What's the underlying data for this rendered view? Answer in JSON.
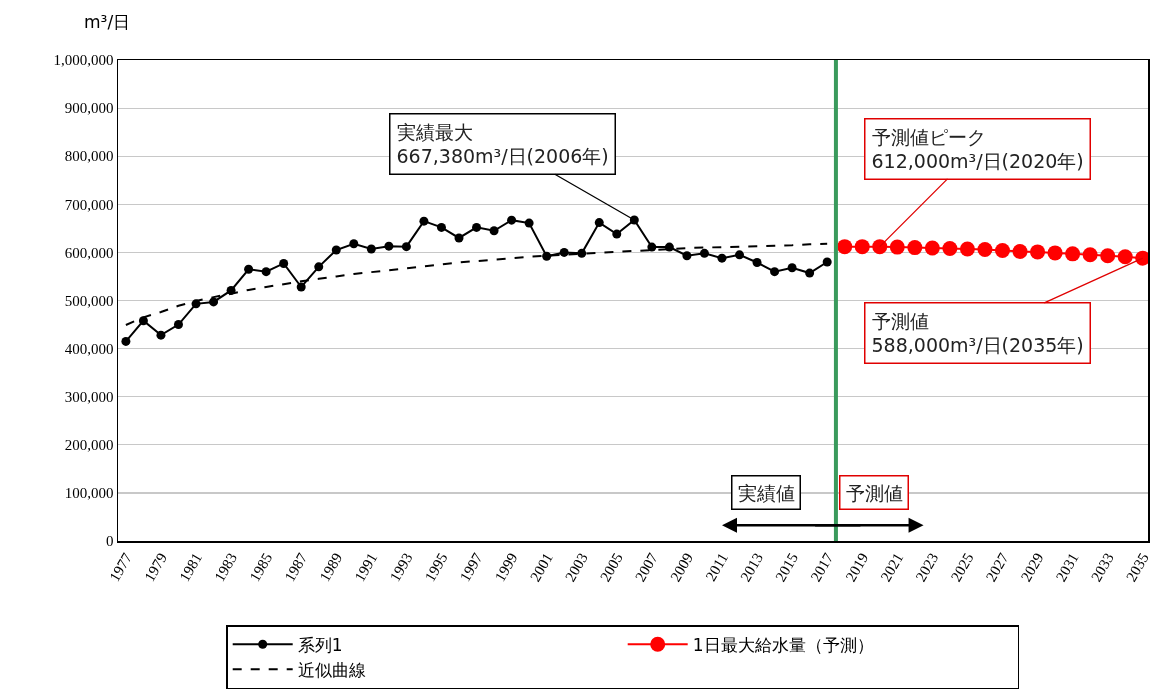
{
  "chart_data": {
    "type": "line",
    "ylabel": "m³/日",
    "x": [
      1977,
      1978,
      1979,
      1980,
      1981,
      1982,
      1983,
      1984,
      1985,
      1986,
      1987,
      1988,
      1989,
      1990,
      1991,
      1992,
      1993,
      1994,
      1995,
      1996,
      1997,
      1998,
      1999,
      2000,
      2001,
      2002,
      2003,
      2004,
      2005,
      2006,
      2007,
      2008,
      2009,
      2010,
      2011,
      2012,
      2013,
      2014,
      2015,
      2016,
      2017,
      2018,
      2019,
      2020,
      2021,
      2022,
      2023,
      2024,
      2025,
      2026,
      2027,
      2028,
      2029,
      2030,
      2031,
      2032,
      2033,
      2034,
      2035
    ],
    "series": [
      {
        "name": "系列1",
        "color": "#000000",
        "values": [
          415000,
          458000,
          428000,
          450000,
          493000,
          497000,
          521000,
          565000,
          560000,
          577000,
          528000,
          570000,
          605000,
          618000,
          607000,
          613000,
          612000,
          665000,
          652000,
          630000,
          652000,
          645000,
          667000,
          661000,
          592000,
          600000,
          598000,
          662000,
          638000,
          667380,
          611000,
          611000,
          593000,
          598000,
          588000,
          595000,
          579000,
          560000,
          568000,
          557000,
          580000,
          null,
          null,
          null,
          null,
          null,
          null,
          null,
          null,
          null,
          null,
          null,
          null,
          null,
          null,
          null,
          null,
          null,
          null
        ]
      },
      {
        "name": "1日最大給水量（予測）",
        "color": "#ff0000",
        "values": [
          null,
          null,
          null,
          null,
          null,
          null,
          null,
          null,
          null,
          null,
          null,
          null,
          null,
          null,
          null,
          null,
          null,
          null,
          null,
          null,
          null,
          null,
          null,
          null,
          null,
          null,
          null,
          null,
          null,
          null,
          null,
          null,
          null,
          null,
          null,
          null,
          null,
          null,
          null,
          null,
          null,
          612000,
          612000,
          612000,
          611000,
          610000,
          609000,
          608000,
          607000,
          606000,
          604000,
          602000,
          601000,
          599000,
          597000,
          595000,
          593000,
          591000,
          588000
        ]
      },
      {
        "name": "近似曲線",
        "color": "#000000",
        "line_style": "dashed",
        "marker": "none",
        "values": [
          449000,
          465000,
          476000,
          489000,
          499000,
          507000,
          514000,
          522000,
          528000,
          534000,
          540000,
          545000,
          550000,
          555000,
          559000,
          563000,
          567000,
          571000,
          575000,
          579000,
          582000,
          585000,
          588000,
          591000,
          593000,
          595000,
          597000,
          599000,
          601000,
          603000,
          605000,
          607000,
          609000,
          610000,
          611000,
          612000,
          613000,
          614000,
          615000,
          617000,
          618000,
          null,
          null,
          null,
          null,
          null,
          null,
          null,
          null,
          null,
          null,
          null,
          null,
          null,
          null,
          null,
          null,
          null,
          null
        ]
      }
    ],
    "xlim": [
      1976.55,
      2035.3
    ],
    "xticks": [
      1977,
      1979,
      1981,
      1983,
      1985,
      1987,
      1989,
      1991,
      1993,
      1995,
      1997,
      1999,
      2001,
      2003,
      2005,
      2007,
      2009,
      2011,
      2013,
      2015,
      2017,
      2019,
      2021,
      2023,
      2025,
      2027,
      2029,
      2031,
      2033,
      2035
    ],
    "ylim": [
      0,
      1000000
    ],
    "yticks": [
      0,
      {
        "value": 100000,
        "label": "100,000"
      },
      {
        "value": 200000,
        "label": "200,000"
      },
      {
        "value": 300000,
        "label": "300,000"
      },
      {
        "value": 400000,
        "label": "400,000"
      },
      {
        "value": 500000,
        "label": "500,000"
      },
      {
        "value": 600000,
        "label": "600,000"
      },
      {
        "value": 700000,
        "label": "700,000"
      },
      {
        "value": 800000,
        "label": "800,000"
      },
      {
        "value": 900000,
        "label": "900,000"
      },
      {
        "value": 1000000,
        "label": "1,000,000"
      }
    ],
    "ref_lines": [
      {
        "axis": "x",
        "value": 2017.5,
        "color": "#3a9a5c"
      }
    ],
    "annotations": [
      {
        "text": "実績最大\n667,380m³/日(2006年)",
        "x": 2006,
        "y": 667380
      },
      {
        "text": "予測値ピーク\n612,000m³/日(2020年)",
        "x": 2020,
        "y": 612000
      },
      {
        "text": "予測値\n588,000m³/日(2035年)",
        "x": 2035,
        "y": 588000
      },
      "実績値",
      "予測値"
    ],
    "grid": "y",
    "legend": "bottom",
    "marker": "circle",
    "line_style": "solid"
  }
}
